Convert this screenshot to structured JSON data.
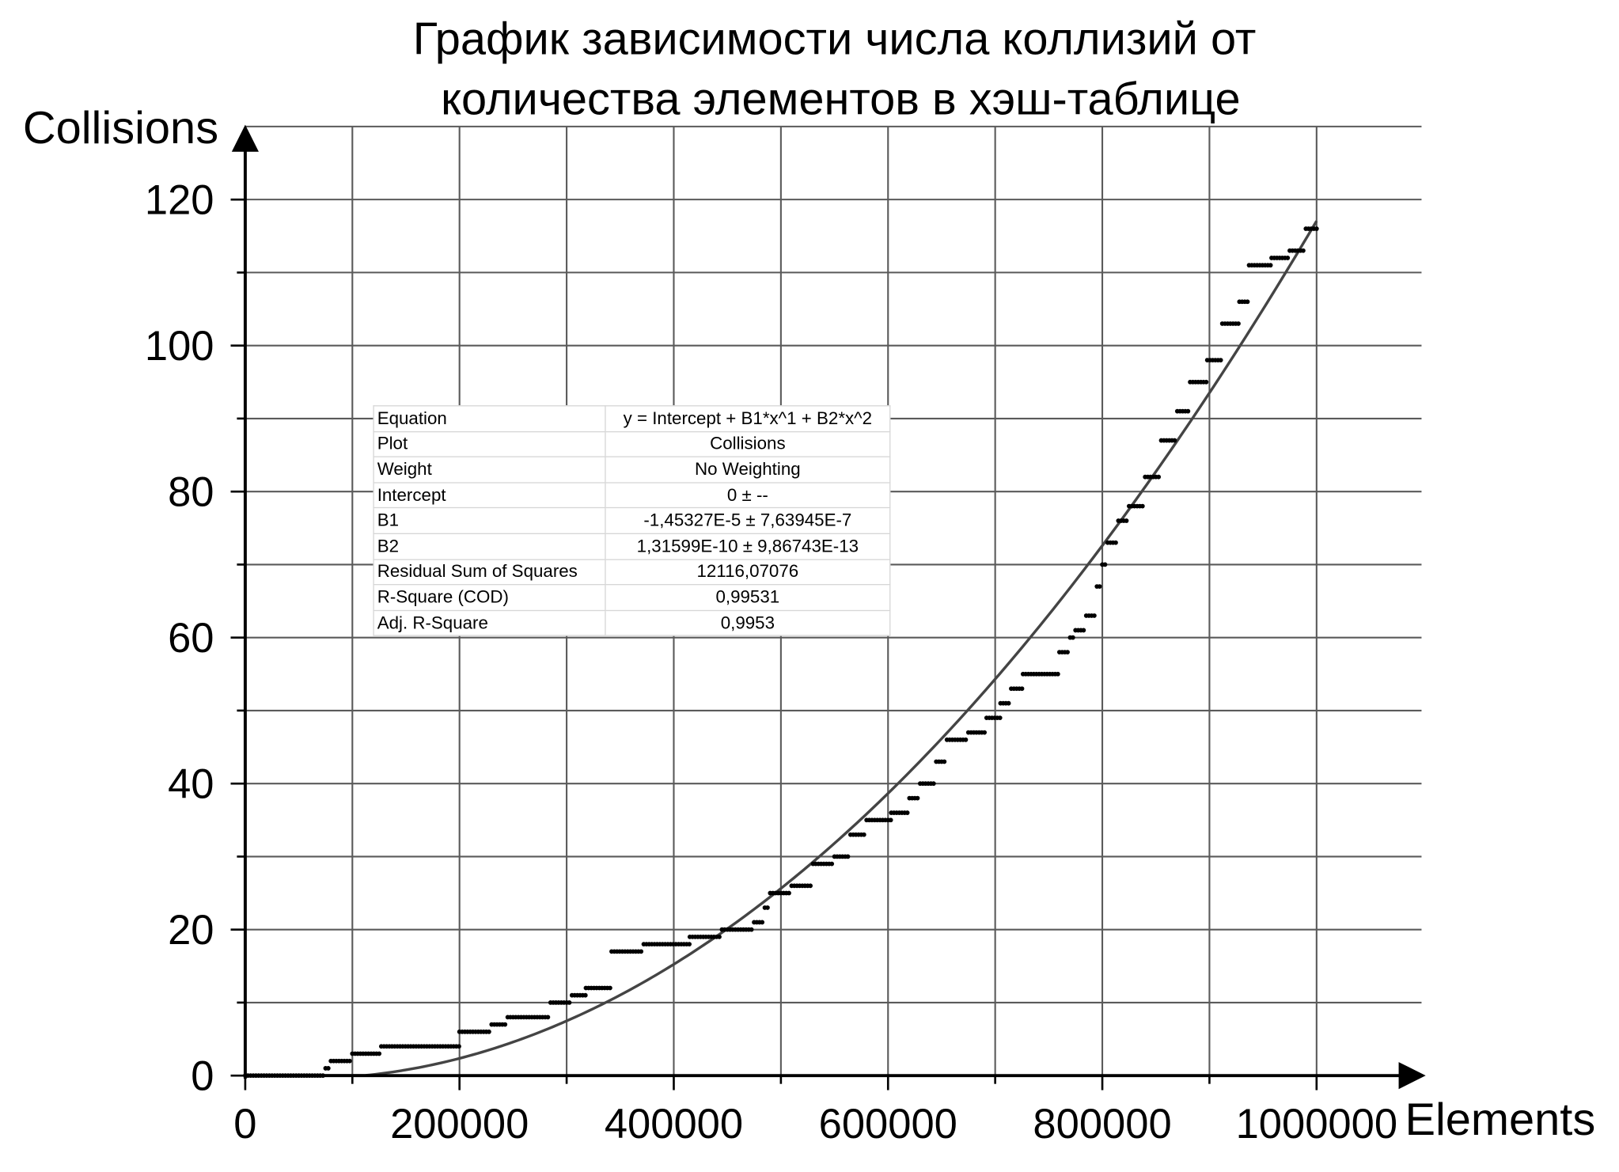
{
  "chart_data": {
    "type": "scatter",
    "title_lines": [
      "График зависимости числа коллизий от",
      "количества элементов в хэш-таблице"
    ],
    "xlabel": "Elements",
    "ylabel": "Collisions",
    "xlim": [
      0,
      1000000
    ],
    "ylim": [
      0,
      120
    ],
    "x_ticks": [
      0,
      200000,
      400000,
      600000,
      800000,
      1000000
    ],
    "y_ticks": [
      0,
      20,
      40,
      60,
      80,
      100,
      120
    ],
    "grid": true,
    "series": [
      {
        "name": "Collisions",
        "style": "points",
        "steps": [
          [
            0,
            0
          ],
          [
            75000,
            1
          ],
          [
            80000,
            2
          ],
          [
            100000,
            3
          ],
          [
            127000,
            4
          ],
          [
            200000,
            6
          ],
          [
            230000,
            7
          ],
          [
            245000,
            8
          ],
          [
            285000,
            10
          ],
          [
            305000,
            11
          ],
          [
            318000,
            12
          ],
          [
            342000,
            17
          ],
          [
            372000,
            18
          ],
          [
            415000,
            19
          ],
          [
            445000,
            20
          ],
          [
            475000,
            21
          ],
          [
            485000,
            23
          ],
          [
            490000,
            25
          ],
          [
            510000,
            26
          ],
          [
            530000,
            29
          ],
          [
            550000,
            30
          ],
          [
            565000,
            33
          ],
          [
            580000,
            35
          ],
          [
            603000,
            36
          ],
          [
            620000,
            38
          ],
          [
            630000,
            40
          ],
          [
            645000,
            43
          ],
          [
            655000,
            46
          ],
          [
            675000,
            47
          ],
          [
            692000,
            49
          ],
          [
            705000,
            51
          ],
          [
            715000,
            53
          ],
          [
            726000,
            55
          ],
          [
            760000,
            58
          ],
          [
            770000,
            60
          ],
          [
            775000,
            61
          ],
          [
            785000,
            63
          ],
          [
            795000,
            67
          ],
          [
            800000,
            70
          ],
          [
            805000,
            73
          ],
          [
            815000,
            76
          ],
          [
            825000,
            78
          ],
          [
            840000,
            82
          ],
          [
            855000,
            87
          ],
          [
            870000,
            91
          ],
          [
            882000,
            95
          ],
          [
            898000,
            98
          ],
          [
            912000,
            103
          ],
          [
            928000,
            106
          ],
          [
            937000,
            111
          ],
          [
            958000,
            112
          ],
          [
            975000,
            113
          ],
          [
            990000,
            116
          ],
          [
            1000000,
            116
          ]
        ]
      },
      {
        "name": "Fit",
        "style": "line",
        "coefficients": {
          "intercept": 0,
          "B1": -1.45327e-05,
          "B2": 1.31599e-10
        }
      }
    ]
  },
  "fit_table": [
    {
      "key": "Equation",
      "value": "y = Intercept + B1*x^1 + B2*x^2"
    },
    {
      "key": "Plot",
      "value": "Collisions"
    },
    {
      "key": "Weight",
      "value": "No Weighting"
    },
    {
      "key": "Intercept",
      "value": "0 ± --"
    },
    {
      "key": "B1",
      "value": "-1,45327E-5 ± 7,63945E-7"
    },
    {
      "key": "B2",
      "value": "1,31599E-10 ± 9,86743E-13"
    },
    {
      "key": "Residual Sum of Squares",
      "value": "12116,07076"
    },
    {
      "key": "R-Square (COD)",
      "value": "0,99531"
    },
    {
      "key": "Adj. R-Square",
      "value": "0,9953"
    }
  ],
  "colors": {
    "grid": "#5a5a5a",
    "axis": "#000000",
    "points": "#000000",
    "fit": "#444444"
  }
}
